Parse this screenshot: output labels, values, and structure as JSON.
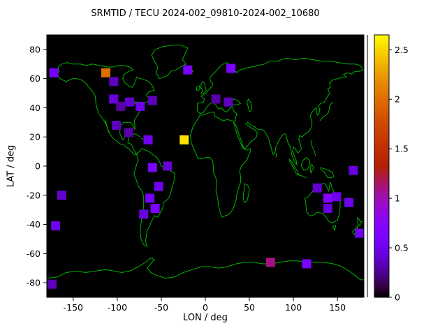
{
  "title": "SRMTID / TECU 2024-002_09810-2024-002_10680",
  "axes": {
    "xlabel": "LON / deg",
    "ylabel": "LAT / deg",
    "xlim": [
      -180,
      180
    ],
    "ylim": [
      -90,
      90
    ],
    "xticks": [
      -150,
      -100,
      -50,
      0,
      50,
      100,
      150
    ],
    "yticks": [
      -80,
      -60,
      -40,
      -20,
      0,
      20,
      40,
      60,
      80
    ]
  },
  "colorbar": {
    "ticks": [
      0,
      0.5,
      1,
      1.5,
      2,
      2.5
    ],
    "unit": "TECU",
    "colormap": "gnuplot (black - violet - red - orange - yellow)",
    "background": "#000000",
    "coast_color": "#00b400"
  },
  "chart_data": {
    "type": "heatmap",
    "title": "SRMTID / TECU 2024-002_09810-2024-002_10680",
    "xlabel": "LON / deg",
    "ylabel": "LAT / deg",
    "xlim": [
      -180,
      180
    ],
    "ylim": [
      -90,
      90
    ],
    "colorbar_ticks": [
      0,
      0.5,
      1,
      1.5,
      2,
      2.5
    ],
    "colorbar_range": [
      0,
      2.65
    ],
    "basemap": "world coastlines drawn in green on black background, equirectangular projection",
    "columns": [
      "lon",
      "lat",
      "tecu"
    ],
    "points": [
      [
        -172,
        64,
        0.55
      ],
      [
        -113,
        64,
        2.0
      ],
      [
        -104,
        58,
        0.35
      ],
      [
        -20,
        66,
        0.6
      ],
      [
        29,
        67,
        0.6
      ],
      [
        -104,
        46,
        0.45
      ],
      [
        -96,
        41,
        0.3
      ],
      [
        -86,
        44,
        0.4
      ],
      [
        -74,
        41,
        0.5
      ],
      [
        -60,
        45,
        0.35
      ],
      [
        -101,
        28,
        0.35
      ],
      [
        -87,
        23,
        0.3
      ],
      [
        -65,
        18,
        0.5
      ],
      [
        -24,
        18,
        2.55
      ],
      [
        12,
        46,
        0.3
      ],
      [
        26,
        44,
        0.35
      ],
      [
        -60,
        -1,
        0.6
      ],
      [
        -43,
        0,
        0.4
      ],
      [
        -53,
        -14,
        0.5
      ],
      [
        -63,
        -22,
        0.55
      ],
      [
        -57,
        -29,
        0.65
      ],
      [
        -70,
        -33,
        0.45
      ],
      [
        -163,
        -20,
        0.4
      ],
      [
        -170,
        -41,
        0.5
      ],
      [
        127,
        -15,
        0.4
      ],
      [
        139,
        -22,
        0.7
      ],
      [
        149,
        -21,
        0.5
      ],
      [
        139,
        -29,
        0.45
      ],
      [
        163,
        -25,
        0.5
      ],
      [
        168,
        -3,
        0.45
      ],
      [
        175,
        -46,
        0.5
      ],
      [
        74,
        -66,
        1.1
      ],
      [
        115,
        -67,
        0.6
      ],
      [
        -174,
        -81,
        0.35
      ]
    ]
  }
}
